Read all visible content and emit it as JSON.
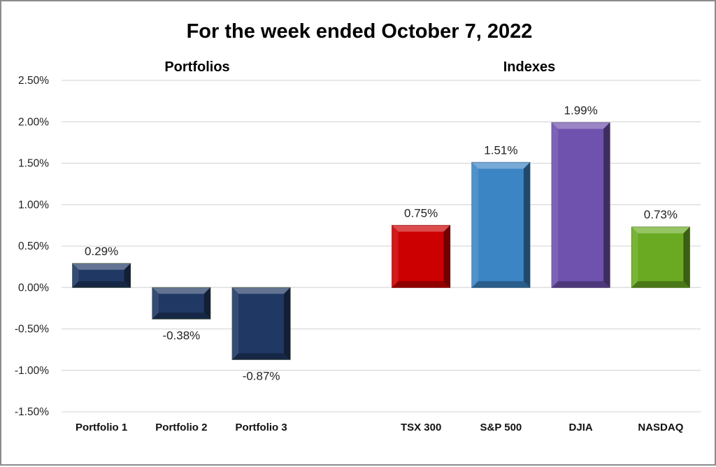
{
  "chart_data": {
    "type": "bar",
    "title": "For the week ended October 7, 2022",
    "groups": [
      {
        "label": "Portfolios",
        "categories": [
          "Portfolio 1",
          "Portfolio 2",
          "Portfolio 3"
        ]
      },
      {
        "label": "Indexes",
        "categories": [
          "TSX 300",
          "S&P 500",
          "DJIA",
          "NASDAQ"
        ]
      }
    ],
    "categories": [
      "Portfolio 1",
      "Portfolio 2",
      "Portfolio 3",
      "",
      "TSX 300",
      "S&P 500",
      "DJIA",
      "NASDAQ"
    ],
    "values": [
      0.29,
      -0.38,
      -0.87,
      null,
      0.75,
      1.51,
      1.99,
      0.73
    ],
    "data_labels": [
      "0.29%",
      "-0.38%",
      "-0.87%",
      "",
      "0.75%",
      "1.51%",
      "1.99%",
      "0.73%"
    ],
    "colors": [
      "#203864",
      "#203864",
      "#203864",
      null,
      "#cc0000",
      "#3c85c4",
      "#6f52ae",
      "#6aaa22"
    ],
    "ylim": [
      -1.5,
      2.5
    ],
    "yticks": [
      2.5,
      2.0,
      1.5,
      1.0,
      0.5,
      0.0,
      -0.5,
      -1.0,
      -1.5
    ],
    "ytick_labels": [
      "2.50%",
      "2.00%",
      "1.50%",
      "1.00%",
      "0.50%",
      "0.00%",
      "-0.50%",
      "-1.00%",
      "-1.50%"
    ],
    "xlabel": "",
    "ylabel": "",
    "grid": true,
    "legend": "none"
  }
}
